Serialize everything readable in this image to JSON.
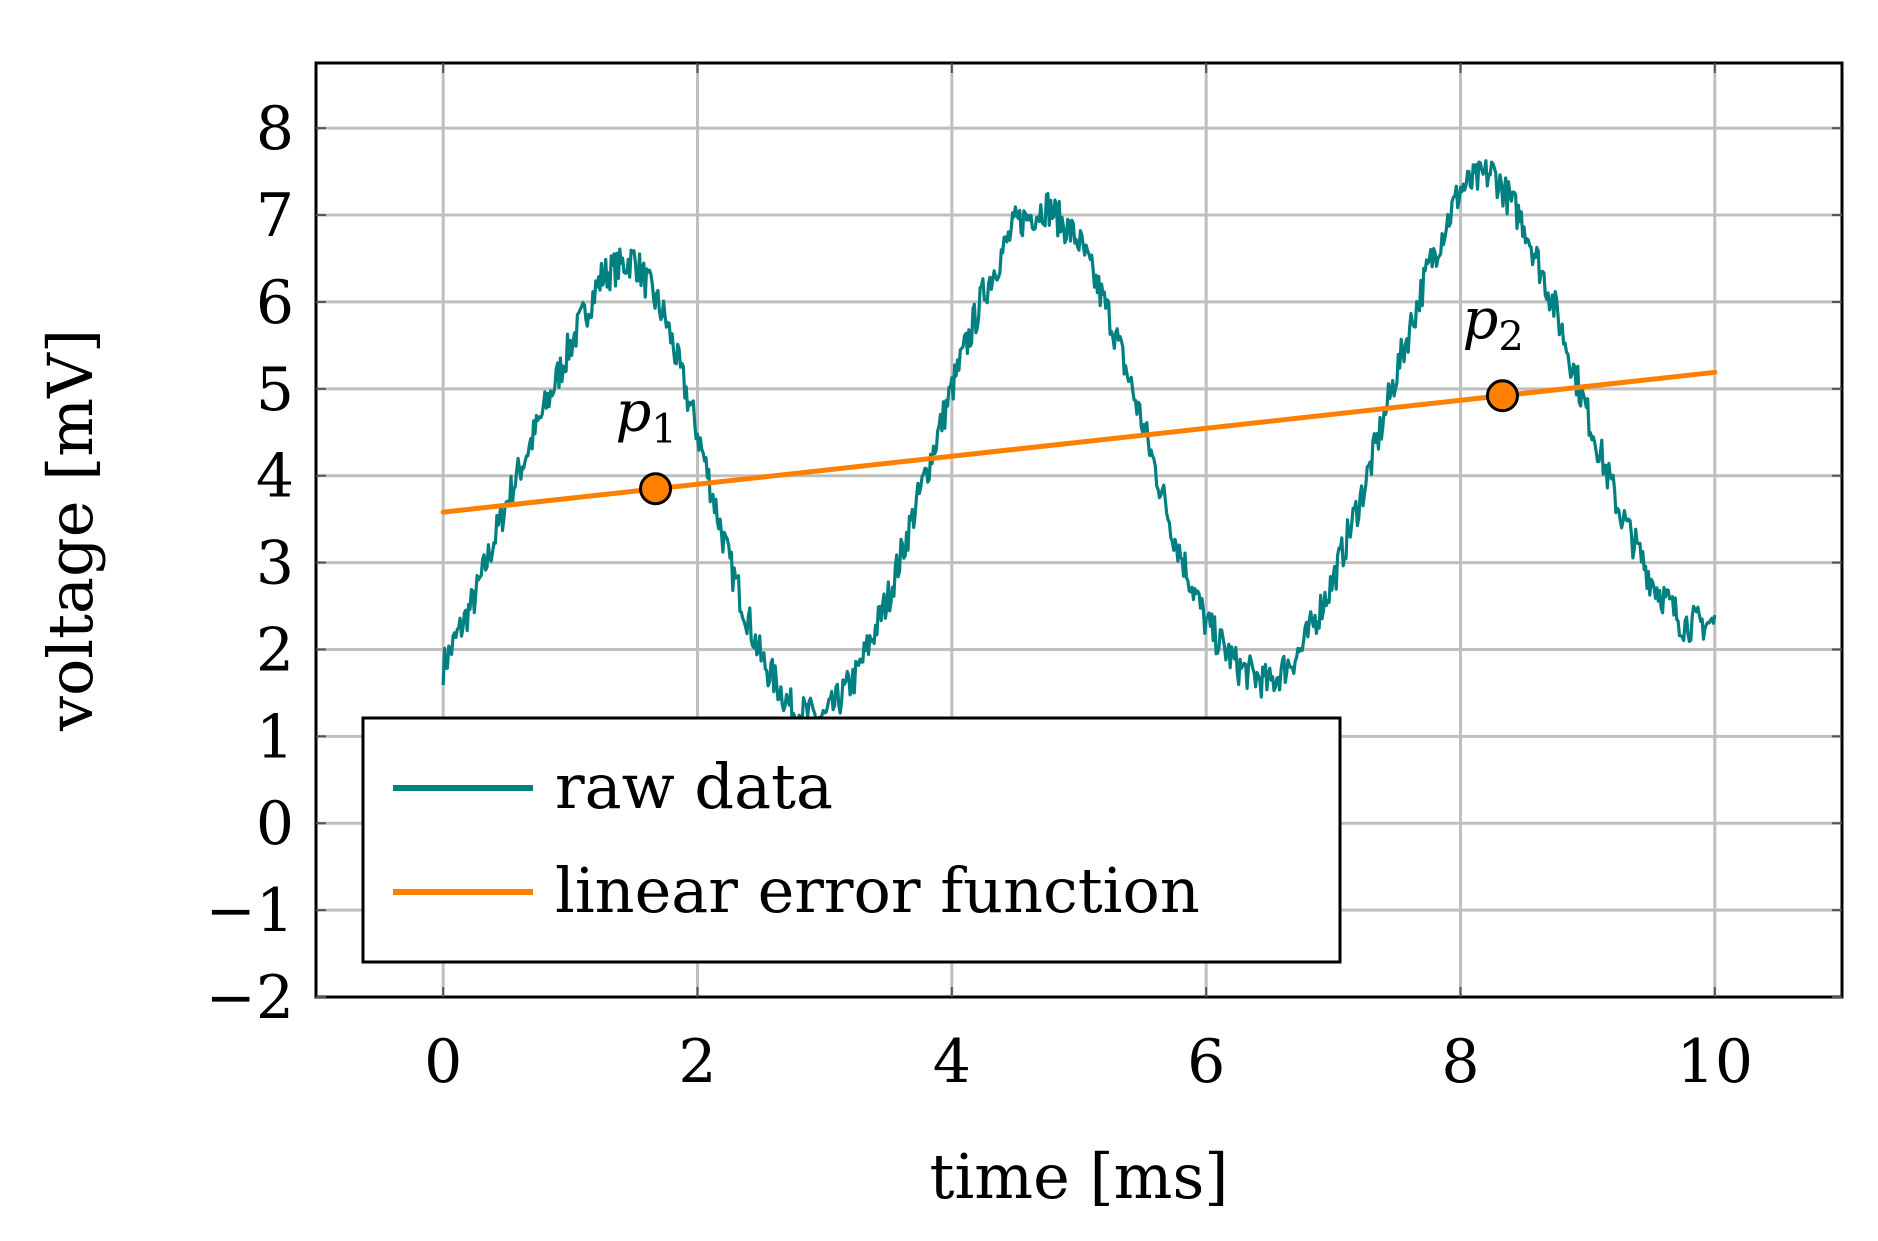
{
  "chart_data": {
    "type": "line",
    "title": "",
    "xlabel": "time [ms]",
    "ylabel": "voltage [mV]",
    "xlim": [
      -1,
      11
    ],
    "ylim": [
      -2,
      8.75
    ],
    "xticks": [
      0,
      2,
      4,
      6,
      8,
      10
    ],
    "xtick_labels": [
      "0",
      "2",
      "4",
      "6",
      "8",
      "10"
    ],
    "yticks": [
      -2,
      -1,
      0,
      1,
      2,
      3,
      4,
      5,
      6,
      7,
      8
    ],
    "ytick_labels": [
      "−2",
      "−1",
      "0",
      "1",
      "2",
      "3",
      "4",
      "5",
      "6",
      "7",
      "8"
    ],
    "grid": true,
    "legend_position": "bottom-left",
    "series": [
      {
        "name": "raw data",
        "color": "#008080",
        "x": [
          0.0,
          0.25,
          0.5,
          0.75,
          1.0,
          1.25,
          1.5,
          1.75,
          2.0,
          2.25,
          2.5,
          2.75,
          3.0,
          3.25,
          3.5,
          3.75,
          4.0,
          4.25,
          4.5,
          4.75,
          5.0,
          5.25,
          5.5,
          5.75,
          6.0,
          6.25,
          6.5,
          6.75,
          7.0,
          7.25,
          7.5,
          7.75,
          8.0,
          8.25,
          8.5,
          8.75,
          9.0,
          9.25,
          9.5,
          9.75,
          10.0
        ],
        "y": [
          1.8,
          2.6,
          3.7,
          4.6,
          5.5,
          6.3,
          6.5,
          5.8,
          4.5,
          3.0,
          1.9,
          1.3,
          1.2,
          1.7,
          2.6,
          3.8,
          5.0,
          6.1,
          6.9,
          7.1,
          6.7,
          5.8,
          4.6,
          3.3,
          2.3,
          1.8,
          1.6,
          2.0,
          2.8,
          3.9,
          5.2,
          6.4,
          7.3,
          7.5,
          6.9,
          5.9,
          4.7,
          3.6,
          2.8,
          2.3,
          2.3
        ]
      },
      {
        "name": "linear error function",
        "color": "#ff8000",
        "x": [
          0,
          10
        ],
        "y": [
          3.58,
          5.19
        ]
      }
    ],
    "annotations": [
      {
        "label": "p",
        "subscript": "1",
        "x": 1.67,
        "y": 3.85,
        "color": "#ff8000"
      },
      {
        "label": "p",
        "subscript": "2",
        "x": 8.33,
        "y": 4.92,
        "color": "#ff8000"
      }
    ]
  }
}
